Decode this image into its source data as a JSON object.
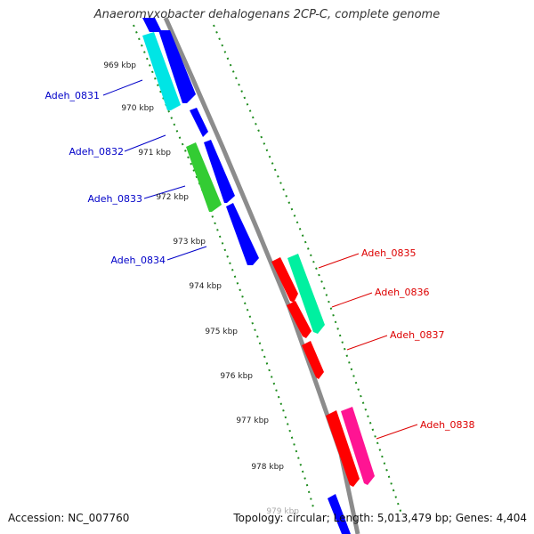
{
  "header": {
    "title": "Anaeromyxobacter dehalogenans 2CP-C, complete genome"
  },
  "footer": {
    "accession": "Accession: NC_007760",
    "summary": "Topology: circular; Length: 5,013,479 bp; Genes: 4,404"
  },
  "colors": {
    "backbone": "#8c8c8c",
    "ticks": "#1e8c1e",
    "left_labels": "#0000c8",
    "right_labels": "#dd0000",
    "blue": "#0000ff",
    "cyan": "#00e5e5",
    "green": "#33cc33",
    "red": "#ff0000",
    "mint": "#00f0a0",
    "pink": "#ff1493"
  },
  "axis": {
    "kbp_labels": [
      "969 kbp",
      "970 kbp",
      "971 kbp",
      "972 kbp",
      "973 kbp",
      "974 kbp",
      "975 kbp",
      "976 kbp",
      "977 kbp",
      "978 kbp",
      "979 kbp"
    ]
  },
  "genes": [
    {
      "name": "Adeh_0831",
      "side": "left",
      "color": "cyan"
    },
    {
      "name": "Adeh_0832",
      "side": "left",
      "color": "green"
    },
    {
      "name": "Adeh_0833",
      "side": "left",
      "color": "blue"
    },
    {
      "name": "Adeh_0834",
      "side": "left",
      "color": "blue"
    },
    {
      "name": "Adeh_0835",
      "side": "right",
      "color": "red"
    },
    {
      "name": "Adeh_0836",
      "side": "right",
      "color": "mint"
    },
    {
      "name": "Adeh_0837",
      "side": "right",
      "color": "red"
    },
    {
      "name": "Adeh_0838",
      "side": "right",
      "color": "pink"
    }
  ]
}
